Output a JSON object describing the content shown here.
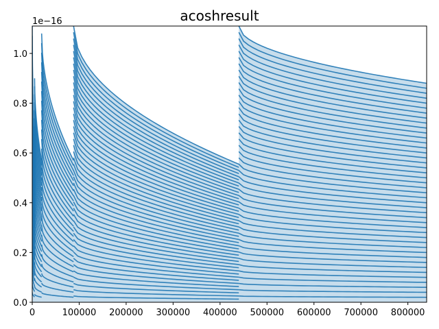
{
  "chart_data": {
    "type": "scatter",
    "title": "acoshresult",
    "xlabel": "",
    "ylabel": "",
    "xlim": [
      0,
      840000
    ],
    "ylim": [
      0,
      1.11e-16
    ],
    "y_offset_label": "1e−16",
    "x_ticks": [
      0,
      100000,
      200000,
      300000,
      400000,
      500000,
      600000,
      700000,
      800000
    ],
    "x_tick_labels": [
      "0",
      "100000",
      "200000",
      "300000",
      "400000",
      "500000",
      "600000",
      "700000",
      "800000"
    ],
    "y_ticks": [
      0.0,
      2e-17,
      4e-17,
      6e-17,
      8e-17,
      1e-16
    ],
    "y_tick_labels": [
      "0.0",
      "0.2",
      "0.4",
      "0.6",
      "0.8",
      "1.0"
    ],
    "grid": false,
    "marker_color": "#1f77b4",
    "series": [
      {
        "segments": [
          {
            "x_start": 0,
            "x_end": 5000,
            "y_top": 1.11e-16,
            "y_bottom_of_top_band": 6e-17
          },
          {
            "x_start": 5000,
            "x_end": 20000,
            "y_top": 9e-17,
            "y_bottom_of_top_band": 5.7e-17
          },
          {
            "x_start": 20000,
            "x_end": 88000,
            "y_top": 1.08e-16,
            "y_bottom_of_top_band": 5.7e-17
          },
          {
            "x_start": 88000,
            "x_end": 440000,
            "y_top": 1.11e-16,
            "y_bottom_of_top_band": 5.55e-17
          },
          {
            "x_start": 440000,
            "x_end": 840000,
            "y_top": 1.11e-16,
            "y_bottom_of_top_band": 8.8e-17
          }
        ]
      }
    ]
  }
}
